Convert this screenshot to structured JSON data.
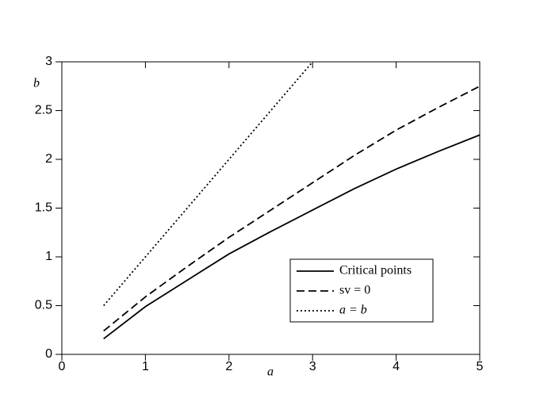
{
  "chart_data": {
    "type": "line",
    "x_label": "a",
    "y_label": "b",
    "x": [
      0.5,
      1,
      1.5,
      2,
      2.5,
      3,
      3.5,
      4,
      4.5,
      5
    ],
    "series": [
      {
        "name": "Critical points",
        "color": "#000000",
        "dash": "solid",
        "values": [
          0.16,
          0.49,
          0.76,
          1.03,
          1.26,
          1.48,
          1.7,
          1.9,
          2.08,
          2.25
        ]
      },
      {
        "name": "sv = 0",
        "color": "#000000",
        "dash": "dashed",
        "values": [
          0.24,
          0.59,
          0.9,
          1.2,
          1.48,
          1.76,
          2.04,
          2.3,
          2.53,
          2.75
        ]
      },
      {
        "name": "a = b",
        "color": "#000000",
        "dash": "dotted",
        "values": [
          0.5,
          1,
          1.5,
          2,
          2.5,
          3,
          null,
          null,
          null,
          null
        ]
      }
    ],
    "xlim": [
      0,
      5
    ],
    "ylim": [
      0,
      3
    ],
    "xticks": [
      0,
      1,
      2,
      3,
      4,
      5
    ],
    "yticks": [
      0,
      0.5,
      1,
      1.5,
      2,
      2.5,
      3
    ],
    "legend": "lower right"
  }
}
